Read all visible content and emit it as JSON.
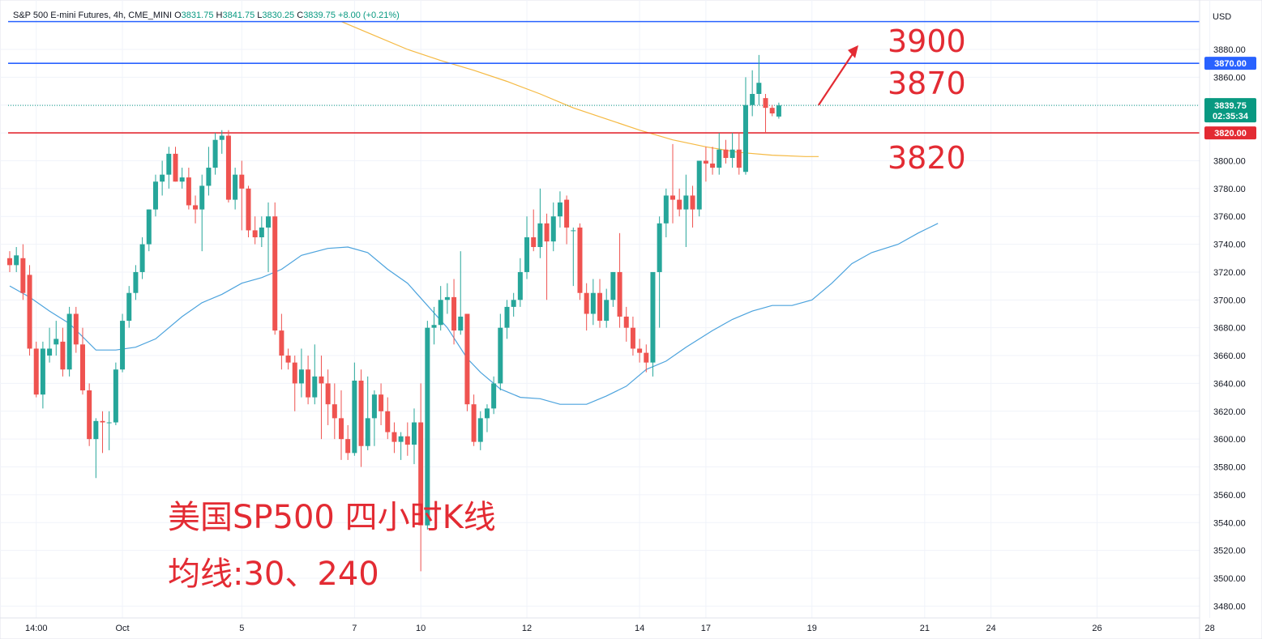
{
  "header": {
    "symbol": "S&P 500 E-mini Futures, 4h, CME_MINI",
    "o_key": "O",
    "o": "3831.75",
    "h_key": "H",
    "h": "3841.75",
    "l_key": "L",
    "l": "3830.25",
    "c_key": "C",
    "c": "3839.75",
    "change": "+8.00 (+0.21%)"
  },
  "colors": {
    "up": "#26a69a",
    "down": "#ef5350",
    "ma30": "#4ca3dd",
    "ma240": "#f5b942",
    "blue_line": "#2962ff",
    "red_line": "#e32b33",
    "current": "#089981",
    "annotation": "#e32b33"
  },
  "chart_data": {
    "type": "candlestick",
    "currency_label": "USD",
    "y_ticks": [
      3480,
      3500,
      3520,
      3540,
      3560,
      3580,
      3600,
      3620,
      3640,
      3660,
      3680,
      3700,
      3720,
      3740,
      3760,
      3780,
      3800,
      3820,
      3840,
      3860,
      3880
    ],
    "y_tick_labels": [
      "3480.00",
      "3500.00",
      "3520.00",
      "3540.00",
      "3560.00",
      "3580.00",
      "3600.00",
      "3620.00",
      "3640.00",
      "3660.00",
      "3680.00",
      "3700.00",
      "3720.00",
      "3740.00",
      "3760.00",
      "3780.00",
      "3800.00",
      "3820.00",
      "3840.00",
      "3860.00",
      "3880.00"
    ],
    "x_ticks": [
      {
        "label": "14:00",
        "bar": 4
      },
      {
        "label": "Oct",
        "bar": 17
      },
      {
        "label": "5",
        "bar": 35
      },
      {
        "label": "7",
        "bar": 52
      },
      {
        "label": "10",
        "bar": 62
      },
      {
        "label": "12",
        "bar": 78
      },
      {
        "label": "14",
        "bar": 95
      },
      {
        "label": "17",
        "bar": 105
      },
      {
        "label": "19",
        "bar": 121
      },
      {
        "label": "21",
        "bar": 138
      },
      {
        "label": "24",
        "bar": 148
      },
      {
        "label": "26",
        "bar": 164
      },
      {
        "label": "28",
        "bar": 181
      }
    ],
    "candles": [
      [
        3730,
        3735,
        3720,
        3725
      ],
      [
        3725,
        3738,
        3720,
        3732
      ],
      [
        3730,
        3740,
        3700,
        3705
      ],
      [
        3718,
        3725,
        3660,
        3665
      ],
      [
        3665,
        3670,
        3630,
        3632
      ],
      [
        3632,
        3670,
        3622,
        3665
      ],
      [
        3660,
        3680,
        3655,
        3665
      ],
      [
        3668,
        3685,
        3660,
        3672
      ],
      [
        3670,
        3680,
        3645,
        3650
      ],
      [
        3650,
        3695,
        3645,
        3690
      ],
      [
        3690,
        3695,
        3662,
        3668
      ],
      [
        3668,
        3680,
        3632,
        3635
      ],
      [
        3635,
        3640,
        3595,
        3600
      ],
      [
        3600,
        3615,
        3572,
        3613
      ],
      [
        3613,
        3620,
        3590,
        3612
      ],
      [
        3612,
        3620,
        3592,
        3612
      ],
      [
        3612,
        3655,
        3610,
        3650
      ],
      [
        3650,
        3690,
        3648,
        3685
      ],
      [
        3685,
        3710,
        3680,
        3705
      ],
      [
        3705,
        3725,
        3700,
        3720
      ],
      [
        3720,
        3745,
        3715,
        3740
      ],
      [
        3740,
        3765,
        3735,
        3765
      ],
      [
        3765,
        3790,
        3760,
        3785
      ],
      [
        3785,
        3800,
        3775,
        3790
      ],
      [
        3790,
        3810,
        3780,
        3805
      ],
      [
        3805,
        3810,
        3785,
        3785
      ],
      [
        3785,
        3795,
        3780,
        3788
      ],
      [
        3788,
        3795,
        3765,
        3768
      ],
      [
        3768,
        3775,
        3755,
        3765
      ],
      [
        3765,
        3790,
        3735,
        3782
      ],
      [
        3782,
        3810,
        3775,
        3795
      ],
      [
        3795,
        3820,
        3790,
        3815
      ],
      [
        3815,
        3822,
        3805,
        3818
      ],
      [
        3818,
        3822,
        3770,
        3772
      ],
      [
        3772,
        3795,
        3765,
        3790
      ],
      [
        3790,
        3800,
        3750,
        3780
      ],
      [
        3780,
        3782,
        3745,
        3750
      ],
      [
        3750,
        3760,
        3740,
        3745
      ],
      [
        3745,
        3760,
        3738,
        3752
      ],
      [
        3752,
        3770,
        3720,
        3760
      ],
      [
        3760,
        3770,
        3675,
        3678
      ],
      [
        3678,
        3690,
        3650,
        3660
      ],
      [
        3660,
        3665,
        3650,
        3655
      ],
      [
        3655,
        3660,
        3620,
        3640
      ],
      [
        3640,
        3665,
        3630,
        3650
      ],
      [
        3650,
        3660,
        3625,
        3630
      ],
      [
        3630,
        3668,
        3625,
        3645
      ],
      [
        3645,
        3660,
        3600,
        3640
      ],
      [
        3640,
        3650,
        3610,
        3625
      ],
      [
        3625,
        3640,
        3600,
        3615
      ],
      [
        3615,
        3635,
        3585,
        3600
      ],
      [
        3600,
        3610,
        3585,
        3590
      ],
      [
        3590,
        3655,
        3588,
        3642
      ],
      [
        3642,
        3650,
        3580,
        3595
      ],
      [
        3595,
        3645,
        3592,
        3615
      ],
      [
        3615,
        3635,
        3595,
        3632
      ],
      [
        3632,
        3640,
        3610,
        3620
      ],
      [
        3620,
        3630,
        3600,
        3605
      ],
      [
        3605,
        3612,
        3590,
        3598
      ],
      [
        3598,
        3605,
        3585,
        3602
      ],
      [
        3602,
        3612,
        3588,
        3596
      ],
      [
        3596,
        3622,
        3582,
        3612
      ],
      [
        3612,
        3640,
        3505,
        3538
      ],
      [
        3538,
        3685,
        3535,
        3680
      ],
      [
        3680,
        3695,
        3668,
        3682
      ],
      [
        3682,
        3710,
        3678,
        3700
      ],
      [
        3700,
        3712,
        3690,
        3702
      ],
      [
        3702,
        3715,
        3668,
        3678
      ],
      [
        3678,
        3735,
        3675,
        3688
      ],
      [
        3690,
        3690,
        3620,
        3625
      ],
      [
        3625,
        3632,
        3595,
        3598
      ],
      [
        3598,
        3620,
        3592,
        3615
      ],
      [
        3615,
        3625,
        3605,
        3622
      ],
      [
        3622,
        3645,
        3618,
        3640
      ],
      [
        3640,
        3690,
        3635,
        3680
      ],
      [
        3680,
        3700,
        3672,
        3695
      ],
      [
        3695,
        3705,
        3688,
        3700
      ],
      [
        3700,
        3730,
        3695,
        3720
      ],
      [
        3720,
        3760,
        3715,
        3745
      ],
      [
        3745,
        3765,
        3735,
        3738
      ],
      [
        3738,
        3780,
        3730,
        3755
      ],
      [
        3755,
        3762,
        3700,
        3742
      ],
      [
        3742,
        3770,
        3735,
        3760
      ],
      [
        3760,
        3778,
        3752,
        3770
      ],
      [
        3772,
        3775,
        3740,
        3752
      ],
      [
        3750,
        3752,
        3710,
        3750
      ],
      [
        3752,
        3755,
        3700,
        3705
      ],
      [
        3705,
        3712,
        3678,
        3690
      ],
      [
        3690,
        3715,
        3682,
        3705
      ],
      [
        3705,
        3715,
        3680,
        3685
      ],
      [
        3685,
        3708,
        3680,
        3700
      ],
      [
        3700,
        3720,
        3695,
        3720
      ],
      [
        3720,
        3748,
        3680,
        3688
      ],
      [
        3688,
        3695,
        3670,
        3680
      ],
      [
        3680,
        3688,
        3660,
        3665
      ],
      [
        3665,
        3672,
        3655,
        3662
      ],
      [
        3662,
        3668,
        3648,
        3655
      ],
      [
        3655,
        3720,
        3645,
        3720
      ],
      [
        3720,
        3760,
        3680,
        3755
      ],
      [
        3755,
        3780,
        3745,
        3775
      ],
      [
        3775,
        3812,
        3755,
        3772
      ],
      [
        3772,
        3780,
        3760,
        3765
      ],
      [
        3765,
        3790,
        3738,
        3775
      ],
      [
        3775,
        3782,
        3752,
        3765
      ],
      [
        3765,
        3800,
        3760,
        3800
      ],
      [
        3800,
        3810,
        3785,
        3798
      ],
      [
        3798,
        3810,
        3790,
        3795
      ],
      [
        3795,
        3820,
        3790,
        3808
      ],
      [
        3808,
        3815,
        3798,
        3802
      ],
      [
        3802,
        3820,
        3795,
        3808
      ],
      [
        3808,
        3820,
        3790,
        3795
      ],
      [
        3792,
        3860,
        3790,
        3840
      ],
      [
        3840,
        3865,
        3832,
        3848
      ],
      [
        3848,
        3876,
        3840,
        3856
      ],
      [
        3845,
        3848,
        3820,
        3838
      ],
      [
        3838,
        3840,
        3832,
        3834
      ],
      [
        3831.75,
        3841.75,
        3830.25,
        3839.75
      ]
    ],
    "ma30": [
      [
        0,
        3710
      ],
      [
        3,
        3702
      ],
      [
        6,
        3692
      ],
      [
        9,
        3683
      ],
      [
        13,
        3664
      ],
      [
        16,
        3664
      ],
      [
        19,
        3666
      ],
      [
        22,
        3672
      ],
      [
        26,
        3688
      ],
      [
        29,
        3698
      ],
      [
        32,
        3704
      ],
      [
        35,
        3712
      ],
      [
        38,
        3716
      ],
      [
        41,
        3722
      ],
      [
        44,
        3732
      ],
      [
        48,
        3737
      ],
      [
        51,
        3738
      ],
      [
        54,
        3734
      ],
      [
        57,
        3722
      ],
      [
        60,
        3712
      ],
      [
        63,
        3696
      ],
      [
        66,
        3680
      ],
      [
        69,
        3658
      ],
      [
        71,
        3648
      ],
      [
        74,
        3636
      ],
      [
        77,
        3630
      ],
      [
        80,
        3629
      ],
      [
        83,
        3625
      ],
      [
        87,
        3625
      ],
      [
        90,
        3631
      ],
      [
        93,
        3638
      ],
      [
        96,
        3650
      ],
      [
        99,
        3656
      ],
      [
        102,
        3666
      ],
      [
        106,
        3678
      ],
      [
        109,
        3686
      ],
      [
        112,
        3692
      ],
      [
        115,
        3696
      ],
      [
        118,
        3696
      ],
      [
        121,
        3700
      ],
      [
        124,
        3712
      ],
      [
        127,
        3726
      ],
      [
        130,
        3734
      ],
      [
        134,
        3740
      ],
      [
        137,
        3748
      ],
      [
        140,
        3755
      ]
    ],
    "ma240": [
      [
        50,
        3900
      ],
      [
        55,
        3890
      ],
      [
        60,
        3880
      ],
      [
        65,
        3872
      ],
      [
        70,
        3865
      ],
      [
        75,
        3857
      ],
      [
        80,
        3848
      ],
      [
        85,
        3838
      ],
      [
        90,
        3830
      ],
      [
        95,
        3822
      ],
      [
        100,
        3815
      ],
      [
        105,
        3810
      ],
      [
        110,
        3806
      ],
      [
        115,
        3804
      ],
      [
        120,
        3803
      ],
      [
        122,
        3803
      ]
    ],
    "hlines": [
      {
        "name": "line-3900",
        "value": 3900,
        "color": "#2962ff"
      },
      {
        "name": "line-3870",
        "value": 3870,
        "color": "#2962ff",
        "label": "3870.00"
      },
      {
        "name": "line-3820",
        "value": 3820,
        "color": "#e32b33",
        "label": "3820.00"
      }
    ],
    "current_price": {
      "value": 3839.75,
      "label": "3839.75",
      "countdown": "02:35:34"
    },
    "annotations": {
      "level1": "3900",
      "level2": "3870",
      "level3": "3820",
      "title_line1": "美国SP500 四小时K线",
      "title_line2": "均线:30、240"
    },
    "arrow": {
      "from": [
        122,
        3840
      ],
      "to": [
        128,
        3883
      ]
    }
  }
}
